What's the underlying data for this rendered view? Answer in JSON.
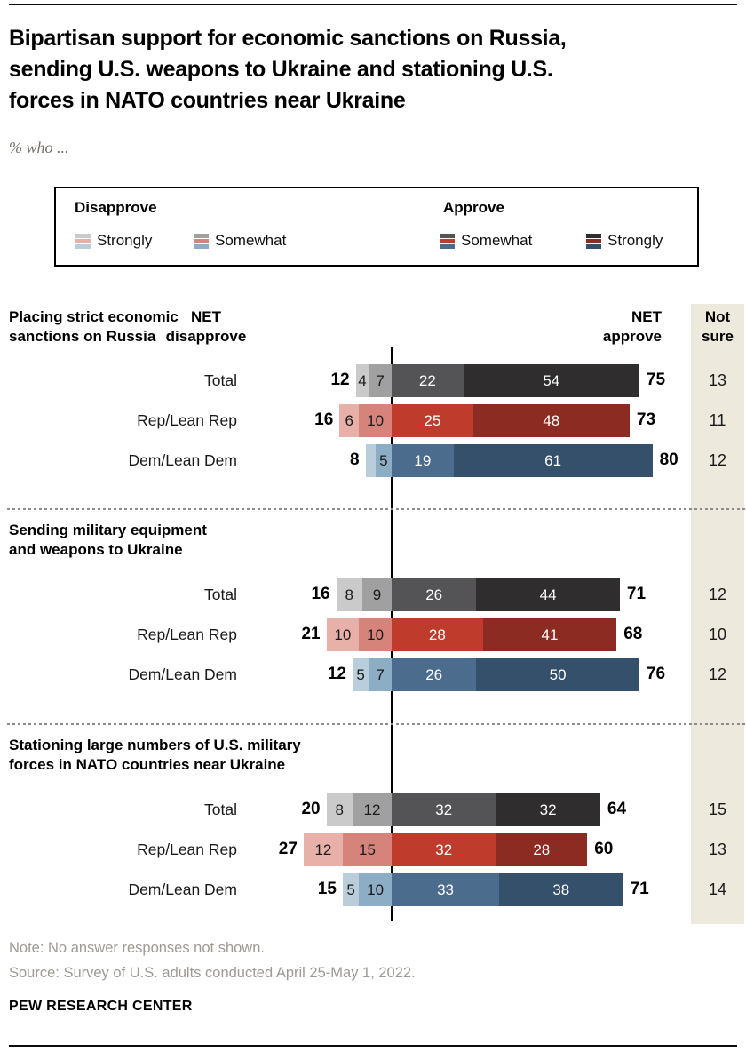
{
  "header": {
    "title": "Bipartisan support for economic sanctions on Russia,\nsending U.S. weapons to Ukraine and stationing U.S.\nforces in NATO countries near Ukraine",
    "subtitle": "% who ..."
  },
  "legend": {
    "disapprove_header": "Disapprove",
    "approve_header": "Approve",
    "items": [
      {
        "label": "Strongly",
        "group": "disapprove",
        "stripes": [
          "#cbcaca",
          "#e7b0a9",
          "#b9cdda"
        ]
      },
      {
        "label": "Somewhat",
        "group": "disapprove",
        "stripes": [
          "#a1a0a0",
          "#d5837b",
          "#8cadc4"
        ]
      },
      {
        "label": "Somewhat",
        "group": "approve",
        "stripes": [
          "#545457",
          "#bf3b2b",
          "#4b6c8c"
        ]
      },
      {
        "label": "Strongly",
        "group": "approve",
        "stripes": [
          "#2f2d2e",
          "#8c2b21",
          "#34506a"
        ]
      }
    ]
  },
  "columns": {
    "net_disapprove": "NET\ndisapprove",
    "net_approve": "NET\napprove",
    "not_sure": "Not\nsure"
  },
  "footer": {
    "note": "Note: No answer responses not shown.",
    "source": "Source: Survey of U.S. adults conducted April 25-May 1, 2022.",
    "brand": "PEW RESEARCH CENTER"
  },
  "chart_data": {
    "type": "bar",
    "orientation": "horizontal",
    "variant": "diverging-stacked",
    "units": "percent",
    "title": "Bipartisan support for economic sanctions on Russia, sending U.S. weapons to Ukraine and stationing U.S. forces in NATO countries near Ukraine",
    "series_order": [
      "strongly-disapprove",
      "somewhat-disapprove",
      "somewhat-approve",
      "strongly-approve"
    ],
    "palettes": {
      "gray": [
        "#cbcaca",
        "#a1a0a0",
        "#545457",
        "#2f2d2e"
      ],
      "red": [
        "#e7b0a9",
        "#d5837b",
        "#bf3b2b",
        "#8c2b21"
      ],
      "blue": [
        "#b9cdda",
        "#8cadc4",
        "#4b6c8c",
        "#34506a"
      ]
    },
    "sections": [
      {
        "title": "Placing strict economic\nsanctions on Russia",
        "rows": [
          {
            "label": "Total",
            "palette": "gray",
            "net_disapprove": "12",
            "net_approve": "75",
            "not_sure": "13",
            "segments": [
              {
                "value": 4,
                "label": "4"
              },
              {
                "value": 7,
                "label": "7"
              },
              {
                "value": 22,
                "label": "22"
              },
              {
                "value": 54,
                "label": "54"
              }
            ]
          },
          {
            "label": "Rep/Lean Rep",
            "palette": "red",
            "net_disapprove": "16",
            "net_approve": "73",
            "not_sure": "11",
            "segments": [
              {
                "value": 6,
                "label": "6"
              },
              {
                "value": 10,
                "label": "10"
              },
              {
                "value": 25,
                "label": "25"
              },
              {
                "value": 48,
                "label": "48"
              }
            ]
          },
          {
            "label": "Dem/Lean Dem",
            "palette": "blue",
            "net_disapprove": "8",
            "net_approve": "80",
            "not_sure": "12",
            "segments": [
              {
                "value": 3,
                "label": ""
              },
              {
                "value": 5,
                "label": "5"
              },
              {
                "value": 19,
                "label": "19"
              },
              {
                "value": 61,
                "label": "61"
              }
            ]
          }
        ]
      },
      {
        "title": "Sending military equipment\nand weapons to Ukraine",
        "rows": [
          {
            "label": "Total",
            "palette": "gray",
            "net_disapprove": "16",
            "net_approve": "71",
            "not_sure": "12",
            "segments": [
              {
                "value": 8,
                "label": "8"
              },
              {
                "value": 9,
                "label": "9"
              },
              {
                "value": 26,
                "label": "26"
              },
              {
                "value": 44,
                "label": "44"
              }
            ]
          },
          {
            "label": "Rep/Lean Rep",
            "palette": "red",
            "net_disapprove": "21",
            "net_approve": "68",
            "not_sure": "10",
            "segments": [
              {
                "value": 10,
                "label": "10"
              },
              {
                "value": 10,
                "label": "10"
              },
              {
                "value": 28,
                "label": "28"
              },
              {
                "value": 41,
                "label": "41"
              }
            ]
          },
          {
            "label": "Dem/Lean Dem",
            "palette": "blue",
            "net_disapprove": "12",
            "net_approve": "76",
            "not_sure": "12",
            "segments": [
              {
                "value": 5,
                "label": "5"
              },
              {
                "value": 7,
                "label": "7"
              },
              {
                "value": 26,
                "label": "26"
              },
              {
                "value": 50,
                "label": "50"
              }
            ]
          }
        ]
      },
      {
        "title": "Stationing large numbers of U.S. military\nforces in NATO countries near Ukraine",
        "rows": [
          {
            "label": "Total",
            "palette": "gray",
            "net_disapprove": "20",
            "net_approve": "64",
            "not_sure": "15",
            "segments": [
              {
                "value": 8,
                "label": "8"
              },
              {
                "value": 12,
                "label": "12"
              },
              {
                "value": 32,
                "label": "32"
              },
              {
                "value": 32,
                "label": "32"
              }
            ]
          },
          {
            "label": "Rep/Lean Rep",
            "palette": "red",
            "net_disapprove": "27",
            "net_approve": "60",
            "not_sure": "13",
            "segments": [
              {
                "value": 12,
                "label": "12"
              },
              {
                "value": 15,
                "label": "15"
              },
              {
                "value": 32,
                "label": "32"
              },
              {
                "value": 28,
                "label": "28"
              }
            ]
          },
          {
            "label": "Dem/Lean Dem",
            "palette": "blue",
            "net_disapprove": "15",
            "net_approve": "71",
            "not_sure": "14",
            "segments": [
              {
                "value": 5,
                "label": "5"
              },
              {
                "value": 10,
                "label": "10"
              },
              {
                "value": 33,
                "label": "33"
              },
              {
                "value": 38,
                "label": "38"
              }
            ]
          }
        ]
      }
    ]
  }
}
